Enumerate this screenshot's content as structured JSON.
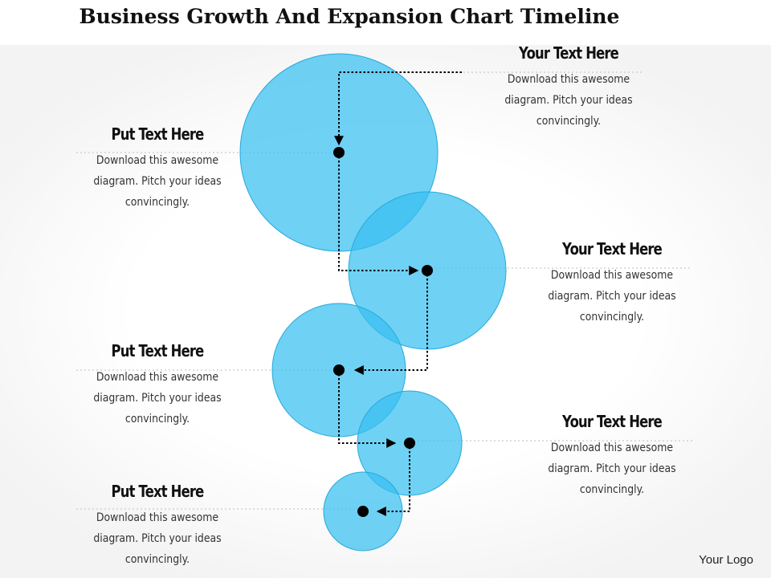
{
  "title": "Business Growth And Expansion Chart Timeline",
  "logo": "Your Logo",
  "colors": {
    "circle_fill": "#4fc8f2",
    "circle_stroke": "#2fb0de",
    "marker": "#000000",
    "guide_line": "#c8c8c8"
  },
  "blocks": [
    {
      "heading": "Your Text Here",
      "body": "Download this awesome diagram. Pitch your ideas convincingly."
    },
    {
      "heading": "Put Text Here",
      "body": "Download this awesome diagram. Pitch your ideas convincingly."
    },
    {
      "heading": "Your Text Here",
      "body": "Download this awesome diagram. Pitch your ideas convincingly."
    },
    {
      "heading": "Put Text Here",
      "body": "Download this awesome diagram. Pitch your ideas convincingly."
    },
    {
      "heading": "Your Text Here",
      "body": "Download this awesome diagram. Pitch your ideas convincingly."
    },
    {
      "heading": "Put Text Here",
      "body": "Download this awesome diagram. Pitch your ideas convincingly."
    }
  ]
}
